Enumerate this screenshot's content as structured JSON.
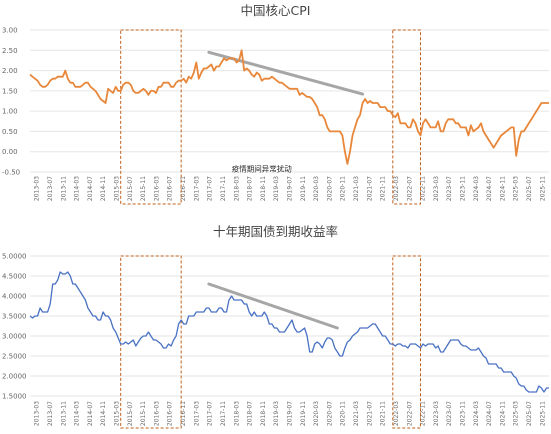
{
  "chart_data": [
    {
      "type": "line",
      "title": "中国核心CPI",
      "xlabel": "",
      "ylabel": "",
      "ylim": [
        -0.5,
        3.0
      ],
      "yticks": [
        "3.00",
        "2.50",
        "2.00",
        "1.50",
        "1.00",
        "0.50",
        "0.00",
        "-0.50"
      ],
      "xticks": [
        "2013-03",
        "2013-07",
        "2013-11",
        "2014-03",
        "2014-07",
        "2014-11",
        "2015-03",
        "2015-07",
        "2015-11",
        "2016-03",
        "2016-07",
        "2016-11",
        "2017-03",
        "2017-07",
        "2017-11",
        "2018-03",
        "2018-07",
        "2018-11",
        "2019-03",
        "2019-07",
        "2019-11",
        "2020-03",
        "2020-07",
        "2020-11",
        "2021-03",
        "2021-07",
        "2021-11",
        "2022-03",
        "2022-07",
        "2022-11",
        "2023-03",
        "2023-07",
        "2023-11",
        "2024-03",
        "2024-07",
        "2024-11",
        "2025-03",
        "2025-07",
        "2025-11"
      ],
      "grid": true,
      "series_color": "#E8873A",
      "trend_color": "#A6A6A6",
      "frame_color": "#C0601A",
      "highlight_ranges": [
        [
          "2016-01",
          "2018-01"
        ],
        [
          "2025-01",
          "2025-12"
        ]
      ],
      "trend_line": [
        {
          "x": "2018-12",
          "y": 2.45
        },
        {
          "x": "2024-01",
          "y": 1.42
        }
      ],
      "annotations": [
        {
          "text": "疫情期间异常扰动",
          "x": "2020-09",
          "y": -0.42
        }
      ],
      "series": [
        {
          "values": [
            [
              1.9,
              1.85,
              1.8,
              1.75,
              1.65,
              1.6,
              1.6,
              1.65,
              1.75,
              1.8,
              1.8,
              1.85
            ],
            [
              1.85,
              1.85,
              2.0,
              1.8,
              1.7,
              1.7,
              1.6,
              1.6,
              1.6,
              1.65,
              1.7,
              1.7
            ],
            [
              1.6,
              1.55,
              1.5,
              1.4,
              1.3,
              1.25,
              1.2,
              1.55,
              1.5,
              1.45,
              1.6,
              1.5
            ],
            [
              1.5,
              1.65,
              1.7,
              1.7,
              1.65,
              1.5,
              1.45,
              1.45,
              1.5,
              1.55,
              1.5,
              1.4
            ],
            [
              1.5,
              1.5,
              1.45,
              1.6,
              1.6,
              1.7,
              1.7,
              1.7,
              1.6,
              1.6,
              1.7,
              1.75
            ],
            [
              1.75,
              1.8,
              1.7,
              1.85,
              1.8,
              1.95,
              2.2,
              1.8,
              1.95,
              2.05,
              2.05,
              2.1
            ],
            [
              2.15,
              2.0,
              2.1,
              2.1,
              2.2,
              2.3,
              2.25,
              2.3,
              2.3,
              2.3,
              2.2,
              2.25
            ],
            [
              2.5,
              2.0,
              2.05,
              2.0,
              1.9,
              1.85,
              1.95,
              1.9,
              1.75,
              1.8,
              1.8,
              1.8
            ],
            [
              1.85,
              1.8,
              1.75,
              1.7,
              1.7,
              1.65,
              1.6,
              1.55,
              1.55,
              1.55,
              1.55,
              1.4
            ],
            [
              1.45,
              1.4,
              1.35,
              1.35,
              1.3,
              1.2,
              1.1,
              0.9,
              0.9,
              0.8,
              0.6,
              0.5
            ],
            [
              0.5,
              0.5,
              0.5,
              0.5,
              0.4,
              0.0,
              -0.3,
              0.0,
              0.4,
              0.6,
              0.8,
              0.9
            ],
            [
              1.2,
              1.3,
              1.2,
              1.25,
              1.2,
              1.2,
              1.2,
              1.1,
              1.1,
              1.1,
              1.0,
              1.0
            ],
            [
              0.9,
              0.85,
              0.95,
              0.7,
              0.7,
              0.7,
              0.6,
              0.6,
              0.8,
              0.7,
              0.5,
              0.4
            ],
            [
              0.7,
              0.8,
              0.7,
              0.6,
              0.6,
              0.6,
              0.75,
              0.5,
              0.5,
              0.7,
              0.8,
              0.8
            ],
            [
              0.8,
              0.7,
              0.7,
              0.6,
              0.6,
              0.6,
              0.4,
              0.65,
              0.5,
              0.55,
              0.6,
              0.7
            ],
            [
              0.5,
              0.4,
              0.3,
              0.2,
              0.1,
              0.2,
              0.3,
              0.4,
              0.45,
              0.5,
              0.55,
              0.6
            ],
            [
              0.6,
              -0.1,
              0.3,
              0.5,
              0.5,
              0.6,
              0.7,
              0.8,
              0.9,
              1.0,
              1.1,
              1.2
            ],
            [
              1.2,
              1.2,
              1.2
            ]
          ]
        }
      ]
    },
    {
      "type": "line",
      "title": "十年期国债到期收益率",
      "xlabel": "",
      "ylabel": "",
      "ylim": [
        1.5,
        5.0
      ],
      "yticks": [
        "5.0000",
        "4.5000",
        "4.0000",
        "3.5000",
        "3.0000",
        "2.5000",
        "2.0000",
        "1.5000"
      ],
      "xticks": [
        "2013-03",
        "2013-07",
        "2013-11",
        "2014-03",
        "2014-07",
        "2014-11",
        "2015-03",
        "2015-07",
        "2015-11",
        "2016-03",
        "2016-07",
        "2016-11",
        "2017-03",
        "2017-07",
        "2017-11",
        "2018-03",
        "2018-07",
        "2018-11",
        "2019-03",
        "2019-07",
        "2019-11",
        "2020-03",
        "2020-07",
        "2020-11",
        "2021-03",
        "2021-07",
        "2021-11",
        "2022-03",
        "2022-07",
        "2022-11",
        "2023-03",
        "2023-07",
        "2023-11",
        "2024-03",
        "2024-07",
        "2024-11",
        "2025-03",
        "2025-07",
        "2025-11"
      ],
      "grid": true,
      "series_color": "#4A72C4",
      "trend_color": "#A6A6A6",
      "frame_color": "#C0601A",
      "highlight_ranges": [
        [
          "2016-01",
          "2018-01"
        ],
        [
          "2025-01",
          "2025-12"
        ]
      ],
      "trend_line": [
        {
          "x": "2018-12",
          "y": 4.3
        },
        {
          "x": "2023-03",
          "y": 3.2
        }
      ],
      "series": [
        {
          "values": [
            [
              3.5,
              3.45,
              3.5,
              3.5,
              3.7,
              3.6,
              3.6,
              3.6,
              3.8,
              4.3,
              4.3,
              4.4
            ],
            [
              4.6,
              4.55,
              4.55,
              4.6,
              4.5,
              4.3,
              4.3,
              4.2,
              4.1,
              4.0,
              3.9,
              3.7
            ],
            [
              3.6,
              3.5,
              3.5,
              3.4,
              3.4,
              3.6,
              3.5,
              3.5,
              3.4,
              3.2,
              3.1,
              2.95
            ],
            [
              2.8,
              2.8,
              2.85,
              2.8,
              2.85,
              2.9,
              2.75,
              2.85,
              2.95,
              3.0,
              3.0,
              3.1
            ],
            [
              3.0,
              2.9,
              2.9,
              2.85,
              2.8,
              2.7,
              2.7,
              2.8,
              2.75,
              2.9,
              3.0,
              3.3
            ],
            [
              3.4,
              3.3,
              3.3,
              3.5,
              3.5,
              3.5,
              3.6,
              3.6,
              3.6,
              3.6,
              3.7,
              3.7
            ],
            [
              3.6,
              3.6,
              3.6,
              3.7,
              3.7,
              3.6,
              3.6,
              3.9,
              4.0,
              3.9,
              3.9,
              3.9
            ],
            [
              3.9,
              3.8,
              3.8,
              3.6,
              3.5,
              3.6,
              3.5,
              3.5,
              3.5,
              3.6,
              3.5,
              3.3
            ],
            [
              3.3,
              3.2,
              3.2,
              3.1,
              3.1,
              3.1,
              3.2,
              3.3,
              3.4,
              3.2,
              3.1,
              3.1
            ],
            [
              3.15,
              3.2,
              3.0,
              2.6,
              2.6,
              2.8,
              2.85,
              2.8,
              2.7,
              2.85,
              2.95,
              2.95
            ],
            [
              2.9,
              2.7,
              2.6,
              2.5,
              2.5,
              2.7,
              2.85,
              2.9,
              3.0,
              3.05,
              3.1,
              3.2
            ],
            [
              3.2,
              3.2,
              3.2,
              3.25,
              3.3,
              3.3,
              3.2,
              3.1,
              3.0,
              3.0,
              2.9,
              2.8
            ],
            [
              2.8,
              2.75,
              2.8,
              2.8,
              2.75,
              2.75,
              2.7,
              2.8,
              2.8,
              2.8,
              2.75,
              2.7
            ],
            [
              2.8,
              2.75,
              2.8,
              2.8,
              2.8,
              2.7,
              2.75,
              2.6,
              2.6,
              2.7,
              2.8,
              2.9
            ],
            [
              2.9,
              2.9,
              2.9,
              2.8,
              2.75,
              2.75,
              2.7,
              2.65,
              2.65,
              2.65,
              2.7,
              2.6
            ],
            [
              2.5,
              2.45,
              2.3,
              2.3,
              2.3,
              2.3,
              2.2,
              2.2,
              2.1,
              2.1,
              2.1,
              2.1
            ],
            [
              2.0,
              1.95,
              1.8,
              1.75,
              1.75,
              1.65,
              1.6,
              1.6,
              1.6,
              1.6,
              1.75,
              1.7
            ],
            [
              1.6,
              1.7,
              1.7
            ]
          ]
        }
      ]
    }
  ]
}
